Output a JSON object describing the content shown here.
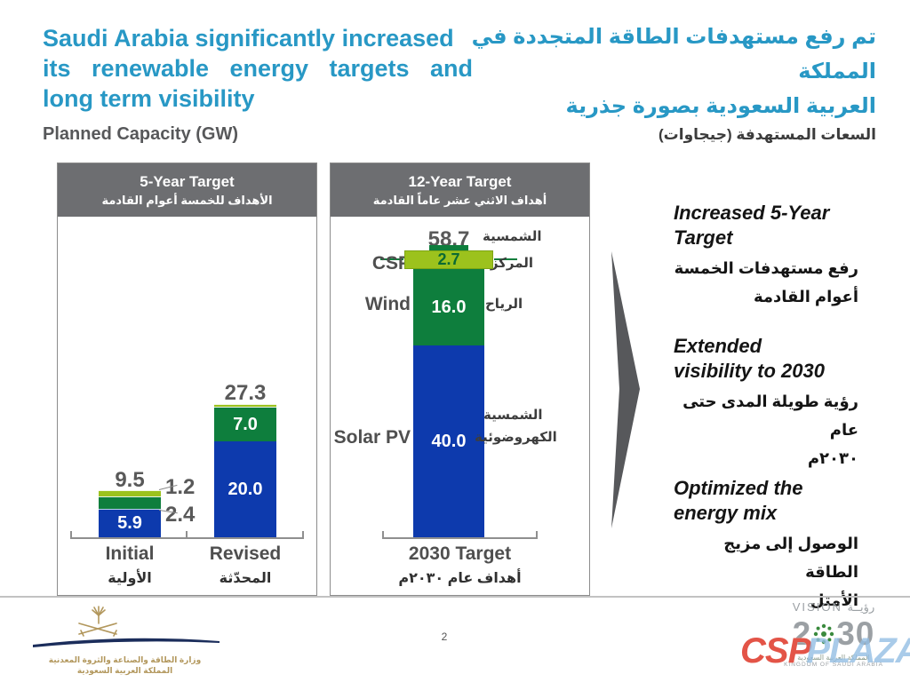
{
  "slide": {
    "title_en": "Saudi Arabia significantly increased its renewable energy targets and long term visibility",
    "title_en_lines": [
      "Saudi Arabia significantly increased",
      "its renewable energy targets and",
      "long term visibility"
    ],
    "title_ar_lines": [
      "تم رفع مستهدفات الطاقة المتجددة في المملكة",
      "العربية السعودية بصورة جذرية"
    ],
    "subtitle_en": "Planned Capacity (GW)",
    "subtitle_ar": "السعات المستهدفة (جيجاوات)",
    "page_number": "2"
  },
  "chart_data": [
    {
      "type": "bar",
      "stacked": true,
      "title": "5-Year Target",
      "title_ar": "الأهداف للخمسة أعوام القادمة",
      "unit": "GW",
      "ylim": [
        0,
        30
      ],
      "grid": false,
      "categories": [
        "Initial",
        "Revised"
      ],
      "categories_ar": [
        "الأولية",
        "المحدّثة"
      ],
      "series": [
        {
          "name": "Solar PV",
          "color": "#0d3aad",
          "values": [
            5.9,
            20.0
          ],
          "labels": [
            "5.9",
            "20.0"
          ]
        },
        {
          "name": "Wind",
          "color": "#0e7e3d",
          "values": [
            2.4,
            7.0
          ],
          "labels": [
            "2.4",
            "7.0"
          ]
        },
        {
          "name": "CSP",
          "color": "#9cc21d",
          "values": [
            1.2,
            0.3
          ],
          "labels": [
            "1.2",
            ""
          ]
        }
      ],
      "totals": [
        9.5,
        27.3
      ],
      "total_labels": [
        "9.5",
        "27.3"
      ]
    },
    {
      "type": "bar",
      "stacked": true,
      "title": "12-Year Target",
      "title_ar": "أهداف الاثني عشر عاماً القادمة",
      "unit": "GW",
      "ylim": [
        0,
        60
      ],
      "grid": false,
      "categories": [
        "2030 Target"
      ],
      "categories_ar": [
        "أهداف عام ٢٠٣٠م"
      ],
      "series": [
        {
          "name": "Solar PV",
          "name_ar": "الشمسية الكهروضوئية",
          "name_ar_lines": [
            "الشمسية",
            "الكهروضوئية"
          ],
          "color": "#0d3aad",
          "values": [
            40.0
          ],
          "labels": [
            "40.0"
          ]
        },
        {
          "name": "Wind",
          "name_ar": "الرياح",
          "name_ar_lines": [
            "الرياح"
          ],
          "color": "#0e7e3d",
          "values": [
            16.0
          ],
          "labels": [
            "16.0"
          ]
        },
        {
          "name": "CSP",
          "name_ar": "الشمسية المركزة",
          "name_ar_lines": [
            "الشمسية",
            "المركزة"
          ],
          "color": "#9cc21d",
          "values": [
            2.7
          ],
          "labels": [
            "2.7"
          ]
        }
      ],
      "totals": [
        58.7
      ],
      "total_labels": [
        "58.7"
      ]
    }
  ],
  "key_points": [
    {
      "en": "Increased 5-Year Target",
      "en_lines": [
        "Increased 5-Year",
        "Target"
      ],
      "ar": "رفع مستهدفات الخمسة أعوام القادمة",
      "ar_lines": [
        "رفع مستهدفات الخمسة",
        "أعوام القادمة"
      ]
    },
    {
      "en": "Extended visibility to 2030",
      "en_lines": [
        "Extended",
        "visibility to 2030"
      ],
      "ar": "رؤية طويلة المدى حتى عام ٢٠٣٠م",
      "ar_lines": [
        "رؤية طويلة المدى حتى عام",
        "٢٠٣٠م"
      ]
    },
    {
      "en": "Optimized the energy mix",
      "en_lines": [
        "Optimized the",
        "energy mix"
      ],
      "ar": "الوصول إلى مزيج الطاقة الأمثل",
      "ar_lines": [
        "الوصول إلى مزيج الطاقة",
        "الأمثل"
      ]
    }
  ],
  "footer": {
    "ministry": {
      "lines": [
        "وزارة الطاقة والصناعة والثروة المعدنية",
        "المملكة العربية السعودية"
      ]
    },
    "vision": {
      "vision_en": "VISION",
      "vision_ar": "رؤيــة",
      "year": "2030",
      "year_left": "2",
      "year_right": "30",
      "kingdom_ar": "المملكة العربية السعودية",
      "kingdom_en": "KINGDOM OF SAUDI ARABIA"
    },
    "watermark": {
      "csp": "CSP",
      "plaza": "PLAZA"
    }
  },
  "colors": {
    "title_teal": "#2898c5",
    "bar_blue": "#0d3aad",
    "bar_green": "#0e7e3d",
    "bar_light_green": "#9cc21d",
    "panel_header_gray": "#6d6e71",
    "arrow_gray": "#57585b",
    "text_gray": "#57585a",
    "watermark_red": "#df3c2e",
    "watermark_blue": "#94bee4",
    "logo_gold": "#b2975c",
    "logo_navy": "#1b2d5b",
    "vision_green": "#3a8a3d"
  }
}
